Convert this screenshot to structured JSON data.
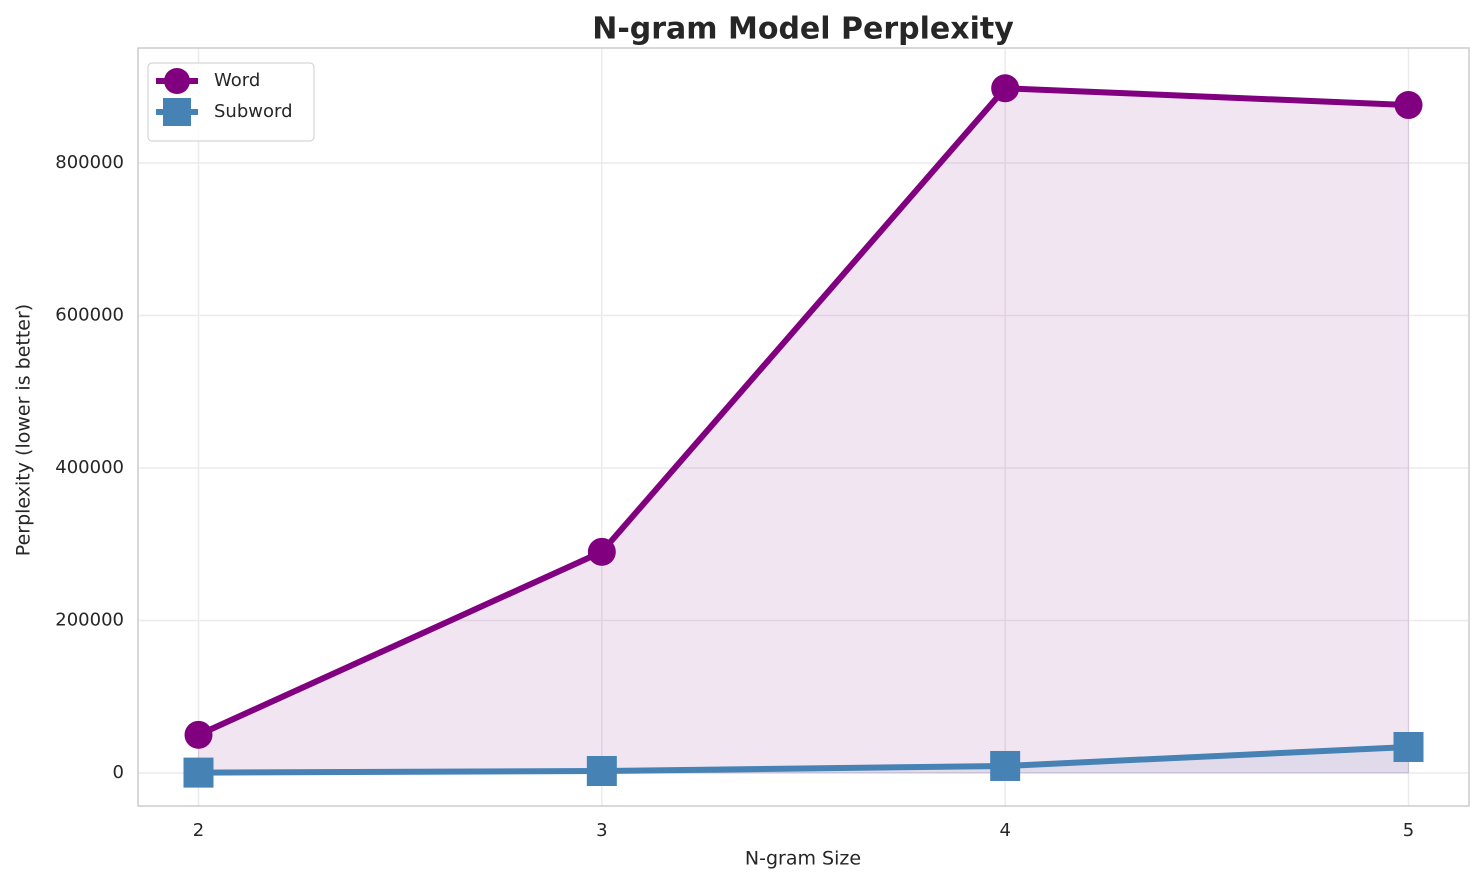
{
  "chart_data": {
    "type": "line",
    "title": "N-gram Model Perplexity",
    "x_label": "N-gram Size",
    "y_label": "Perplexity (lower is better)",
    "x": [
      2,
      3,
      4,
      5
    ],
    "series": [
      {
        "name": "Word",
        "color": "#800080",
        "marker": "circle",
        "values": [
          50000,
          290000,
          898000,
          876000
        ]
      },
      {
        "name": "Subword",
        "color": "#4682b4",
        "marker": "square",
        "values": [
          500,
          2600,
          9200,
          34100
        ]
      }
    ],
    "xlim": [
      1.85,
      5.15
    ],
    "xticks": [
      2,
      3,
      4,
      5
    ],
    "ylim": [
      -43300,
      950800
    ],
    "yticks": [
      0,
      200000,
      400000,
      600000,
      800000
    ],
    "grid": true,
    "fill_area": true,
    "legend": "upper-left"
  }
}
